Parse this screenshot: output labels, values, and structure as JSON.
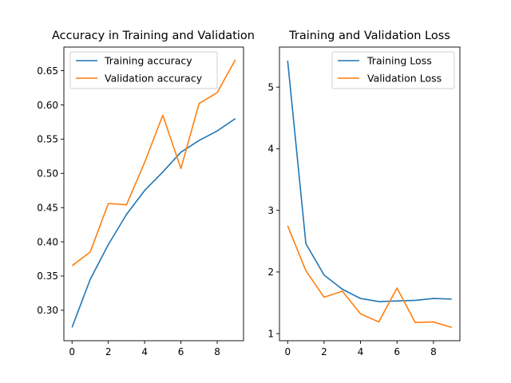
{
  "chart_data": [
    {
      "type": "line",
      "title": "Accuracy in Training and Validation",
      "xlabel": "",
      "ylabel": "",
      "x": [
        0,
        1,
        2,
        3,
        4,
        5,
        6,
        7,
        8,
        9
      ],
      "xlim": [
        -0.45,
        9.45
      ],
      "ylim": [
        0.2555,
        0.6845
      ],
      "xticks": [
        0,
        2,
        4,
        6,
        8
      ],
      "yticks": [
        0.3,
        0.35,
        0.4,
        0.45,
        0.5,
        0.55,
        0.6,
        0.65
      ],
      "xtick_labels": [
        "0",
        "2",
        "4",
        "6",
        "8"
      ],
      "ytick_labels": [
        "0.30",
        "0.35",
        "0.40",
        "0.45",
        "0.50",
        "0.55",
        "0.60",
        "0.65"
      ],
      "grid": false,
      "legend": "upper-left",
      "series": [
        {
          "name": "Training accuracy",
          "color": "#1f77b4",
          "values": [
            0.275,
            0.345,
            0.396,
            0.44,
            0.475,
            0.502,
            0.531,
            0.548,
            0.562,
            0.58
          ]
        },
        {
          "name": "Validation accuracy",
          "color": "#ff7f0e",
          "values": [
            0.365,
            0.385,
            0.456,
            0.454,
            0.516,
            0.585,
            0.507,
            0.602,
            0.618,
            0.666
          ]
        }
      ]
    },
    {
      "type": "line",
      "title": "Training and Validation Loss",
      "xlabel": "",
      "ylabel": "",
      "x": [
        0,
        1,
        2,
        3,
        4,
        5,
        6,
        7,
        8,
        9
      ],
      "xlim": [
        -0.45,
        9.45
      ],
      "ylim": [
        0.885,
        5.65
      ],
      "xticks": [
        0,
        2,
        4,
        6,
        8
      ],
      "yticks": [
        1,
        2,
        3,
        4,
        5
      ],
      "xtick_labels": [
        "0",
        "2",
        "4",
        "6",
        "8"
      ],
      "ytick_labels": [
        "1",
        "2",
        "3",
        "4",
        "5"
      ],
      "grid": false,
      "legend": "upper-right",
      "series": [
        {
          "name": "Training Loss",
          "color": "#1f77b4",
          "values": [
            5.43,
            2.46,
            1.95,
            1.72,
            1.57,
            1.52,
            1.53,
            1.54,
            1.57,
            1.56
          ]
        },
        {
          "name": "Validation Loss",
          "color": "#ff7f0e",
          "values": [
            2.75,
            2.02,
            1.59,
            1.69,
            1.32,
            1.19,
            1.74,
            1.18,
            1.19,
            1.1
          ]
        }
      ]
    }
  ]
}
